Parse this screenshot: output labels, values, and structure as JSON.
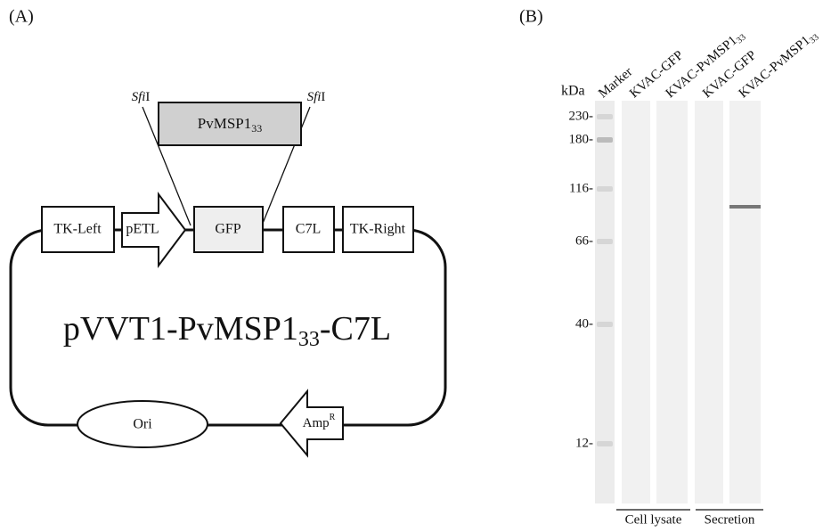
{
  "panel_a": {
    "label": "(A)",
    "insert": {
      "name": "PvMSP1",
      "sub": "33"
    },
    "site_left": {
      "italic": "Sfi",
      "rest": "I"
    },
    "site_right": {
      "italic": "Sfi",
      "rest": "I"
    },
    "elements": [
      "TK-Left",
      "pETL",
      "GFP",
      "C7L",
      "TK-Right"
    ],
    "plasmid": {
      "name": "pVVT1-PvMSP1",
      "sub": "33",
      "suffix": "-C7L"
    },
    "ori": "Ori",
    "amp": {
      "name": "Amp",
      "sup": "R"
    }
  },
  "panel_b": {
    "label": "(B)",
    "unit": "kDa",
    "lanes": [
      {
        "name": "Marker"
      },
      {
        "name": "KVAC-GFP"
      },
      {
        "name": "KVAC-PvMSP1",
        "sub": "33"
      },
      {
        "name": "KVAC-GFP"
      },
      {
        "name": "KVAC-PvMSP1",
        "sub": "33"
      }
    ],
    "markers": [
      "230-",
      "180-",
      "116-",
      "66-",
      "40-",
      "12-"
    ],
    "groups": [
      "Cell lysate",
      "Secretion"
    ]
  }
}
